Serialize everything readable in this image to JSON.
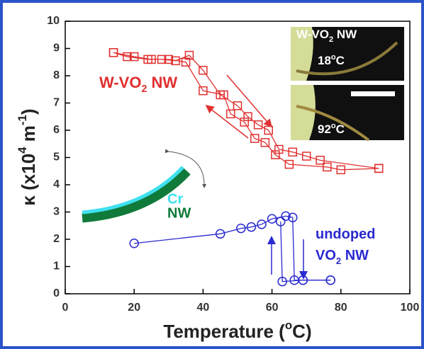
{
  "chart_data": {
    "type": "line",
    "xlabel": [
      "Temperature (",
      "o",
      "C)"
    ],
    "ylabel": [
      "κ (x10",
      "4",
      " m",
      "-1",
      ")"
    ],
    "xlim": [
      0,
      100
    ],
    "xticks": [
      0,
      20,
      40,
      60,
      80,
      100
    ],
    "ylim": [
      0,
      10
    ],
    "yticks": [
      0,
      1,
      2,
      3,
      4,
      5,
      6,
      7,
      8,
      9,
      10
    ],
    "series": [
      {
        "color": "#e03030",
        "marker": "square",
        "x": [
          14,
          18,
          24,
          28,
          32,
          36,
          40,
          45,
          50,
          53,
          56,
          59,
          62,
          66,
          70,
          74,
          91
        ],
        "values": [
          8.85,
          8.7,
          8.6,
          8.6,
          8.55,
          8.75,
          8.2,
          7.3,
          6.9,
          6.5,
          6.2,
          6.0,
          5.3,
          5.2,
          5.05,
          4.9,
          4.6
        ]
      },
      {
        "color": "#e03030",
        "marker": "square",
        "x": [
          91,
          80,
          76,
          65,
          61,
          58,
          55,
          52,
          48,
          46,
          40,
          35,
          30,
          25,
          20,
          14
        ],
        "values": [
          4.6,
          4.55,
          4.65,
          4.75,
          5.1,
          5.55,
          5.7,
          6.3,
          6.6,
          7.3,
          7.45,
          8.5,
          8.6,
          8.6,
          8.7,
          8.85
        ]
      },
      {
        "color": "#2a2ad0",
        "marker": "circle",
        "x": [
          20,
          45,
          51,
          54,
          57,
          60,
          64,
          66,
          66.5,
          69,
          77
        ],
        "values": [
          1.85,
          2.2,
          2.4,
          2.45,
          2.55,
          2.75,
          2.85,
          2.8,
          0.5,
          0.5,
          0.5
        ]
      },
      {
        "color": "#2a2ad0",
        "marker": "circle",
        "x": [
          77,
          69,
          63,
          62.5
        ],
        "values": [
          0.5,
          0.5,
          0.45,
          2.65
        ]
      }
    ],
    "annotations": [
      {
        "text": [
          "W-VO",
          "2",
          " NW"
        ],
        "color": "#e03030"
      },
      {
        "text": [
          "undoped"
        ],
        "color": "#2a2ad0"
      },
      {
        "text": [
          "VO",
          "2",
          " NW"
        ],
        "color": "#2a2ad0"
      }
    ],
    "inset": {
      "label": [
        "W-VO",
        "2",
        " NW"
      ],
      "top_temp": [
        "18",
        "o",
        "C"
      ],
      "bottom_temp": [
        "92",
        "o",
        "C"
      ]
    },
    "diagram": {
      "cr": "Cr",
      "nw": "NW"
    }
  }
}
